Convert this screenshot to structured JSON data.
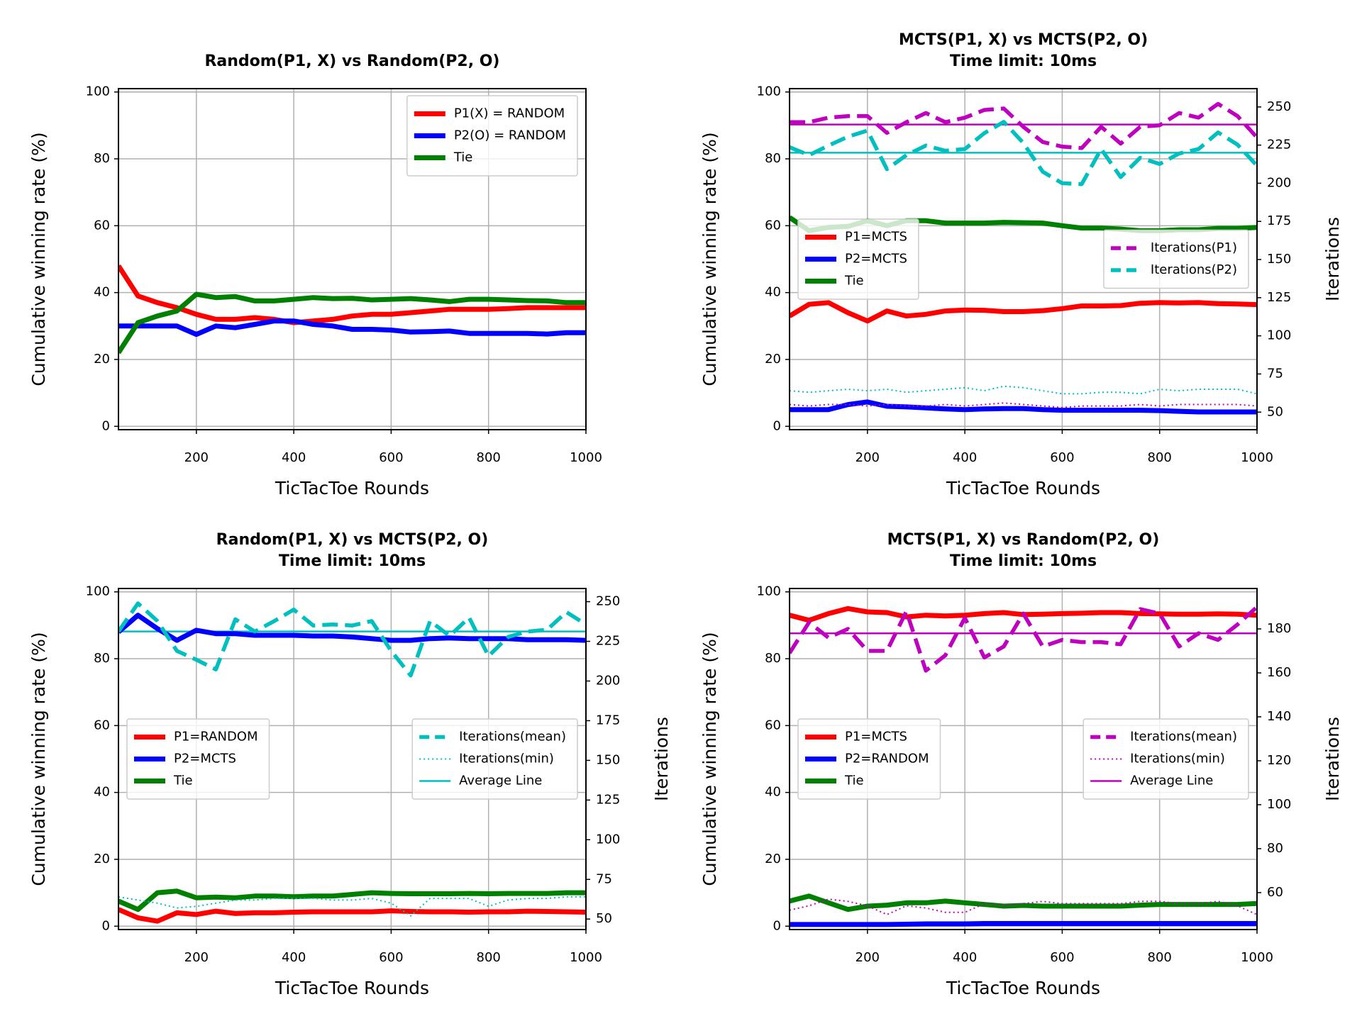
{
  "chart_data": [
    {
      "type": "line",
      "title": "Random(P1, X) vs Random(P2, O)",
      "xlabel": "TicTacToe Rounds",
      "ylabel": "Cumulative winning rate (%)",
      "x": [
        40,
        80,
        120,
        160,
        200,
        240,
        280,
        320,
        360,
        400,
        440,
        480,
        520,
        560,
        600,
        640,
        680,
        720,
        760,
        800,
        840,
        880,
        920,
        960,
        1000
      ],
      "xlim": [
        40,
        1000
      ],
      "xticks": [
        200,
        400,
        600,
        800,
        1000
      ],
      "ylim": [
        -1,
        101
      ],
      "yticks": [
        0,
        20,
        40,
        60,
        80,
        100
      ],
      "grid": true,
      "legend": "upper right",
      "series": [
        {
          "name": "P1(X) = RANDOM",
          "color": "#ff0000",
          "style": "solid",
          "values": [
            48,
            39,
            37,
            35.5,
            33.5,
            32,
            32,
            32.5,
            32,
            31,
            31.5,
            32,
            33,
            33.5,
            33.5,
            34,
            34.5,
            35,
            35,
            35,
            35.2,
            35.5,
            35.5,
            35.5,
            35.5
          ]
        },
        {
          "name": "P2(O) = RANDOM",
          "color": "#0000ff",
          "style": "solid",
          "values": [
            30,
            30,
            30,
            30,
            27.5,
            30,
            29.5,
            30.5,
            31.5,
            31.5,
            30.5,
            30,
            29,
            29,
            28.8,
            28.2,
            28.3,
            28.5,
            27.8,
            27.8,
            27.8,
            27.8,
            27.6,
            28,
            28
          ]
        },
        {
          "name": "Tie",
          "color": "#008000",
          "style": "solid",
          "values": [
            22,
            31,
            33,
            34.5,
            39.5,
            38.5,
            38.8,
            37.5,
            37.5,
            38,
            38.5,
            38.2,
            38.3,
            37.8,
            38,
            38.2,
            37.8,
            37.3,
            38,
            38,
            37.8,
            37.6,
            37.5,
            37,
            37
          ]
        }
      ]
    },
    {
      "type": "line",
      "title": "MCTS(P1, X) vs MCTS(P2, O)",
      "subtitle": "Time limit: 10ms",
      "xlabel": "TicTacToe Rounds",
      "ylabel": "Cumulative winning rate (%)",
      "y2label": "Iterations",
      "x": [
        40,
        80,
        120,
        160,
        200,
        240,
        280,
        320,
        360,
        400,
        440,
        480,
        520,
        560,
        600,
        640,
        680,
        720,
        760,
        800,
        840,
        880,
        920,
        960,
        1000
      ],
      "xlim": [
        40,
        1000
      ],
      "xticks": [
        200,
        400,
        600,
        800,
        1000
      ],
      "ylim": [
        -1,
        101
      ],
      "yticks": [
        0,
        20,
        40,
        60,
        80,
        100
      ],
      "y2lim": [
        38.5,
        262
      ],
      "y2ticks": [
        50,
        75,
        100,
        125,
        150,
        175,
        200,
        225,
        250
      ],
      "grid": true,
      "legend": "center left",
      "legend2": "center right",
      "series": [
        {
          "name": "P1=MCTS",
          "color": "#ff0000",
          "style": "solid",
          "values": [
            33,
            36.5,
            37,
            34,
            31.5,
            34.5,
            33,
            33.5,
            34.5,
            34.8,
            34.7,
            34.3,
            34.3,
            34.6,
            35.2,
            36,
            36,
            36.1,
            36.8,
            37,
            36.9,
            37,
            36.7,
            36.6,
            36.4
          ]
        },
        {
          "name": "P2=MCTS",
          "color": "#0000ff",
          "style": "solid",
          "values": [
            5,
            5,
            5,
            6.5,
            7.3,
            6,
            5.8,
            5.5,
            5.2,
            5,
            5.2,
            5.3,
            5.3,
            5,
            4.8,
            4.8,
            4.8,
            4.8,
            4.8,
            4.7,
            4.5,
            4.3,
            4.3,
            4.3,
            4.3
          ]
        },
        {
          "name": "Tie",
          "color": "#008000",
          "style": "solid",
          "values": [
            62.5,
            58.5,
            59.5,
            59.8,
            61.5,
            60,
            61.5,
            61.5,
            60.8,
            60.8,
            60.8,
            61,
            60.9,
            60.8,
            60,
            59.3,
            59.3,
            59,
            58.5,
            58.5,
            58.8,
            58.8,
            59.2,
            59.2,
            59.5
          ]
        },
        {
          "name": "Iterations(P1)",
          "color": "#bf00bf",
          "style": "dashed",
          "axis": "y2",
          "values": [
            240,
            240,
            243,
            244,
            244,
            233,
            240,
            246,
            240,
            243,
            248,
            249,
            237,
            227,
            224,
            223,
            237,
            226,
            237,
            238,
            246,
            243,
            252,
            244,
            230
          ]
        },
        {
          "name": "Iterations(P2)",
          "color": "#00bfbf",
          "style": "dashed",
          "axis": "y2",
          "values": [
            223.6,
            218.4,
            224.7,
            230.5,
            234.5,
            209.2,
            218.4,
            224.7,
            221.3,
            222.4,
            232.8,
            240.2,
            226.4,
            207.5,
            200,
            199.4,
            222.4,
            204,
            216.7,
            212.6,
            219.5,
            222.4,
            233.3,
            225.3,
            211.5
          ]
        },
        {
          "color": "#00bfbf",
          "style": "dotted",
          "axis": "y2",
          "values": [
            64,
            63,
            64,
            65,
            64,
            65,
            63,
            64,
            65,
            66,
            64,
            67,
            66,
            64,
            62,
            62,
            63,
            63,
            62,
            65,
            64,
            65,
            65,
            65,
            62
          ]
        },
        {
          "color": "#bf00bf",
          "style": "dotted",
          "axis": "y2",
          "values": [
            55,
            54,
            55,
            55,
            54,
            55,
            54,
            54,
            55,
            54,
            55,
            56,
            55,
            54,
            53,
            54,
            54,
            54,
            55,
            54,
            55,
            55,
            55,
            55,
            54
          ]
        }
      ],
      "hlines": [
        {
          "color": "#bf00bf",
          "axis": "y2",
          "value": 238.5
        },
        {
          "color": "#00bfbf",
          "axis": "y2",
          "value": 220
        }
      ]
    },
    {
      "type": "line",
      "title": "Random(P1, X) vs MCTS(P2, O)",
      "subtitle": "Time limit: 10ms",
      "xlabel": "TicTacToe Rounds",
      "ylabel": "Cumulative winning rate (%)",
      "y2label": "Iterations",
      "x": [
        40,
        80,
        120,
        160,
        200,
        240,
        280,
        320,
        360,
        400,
        440,
        480,
        520,
        560,
        600,
        640,
        680,
        720,
        760,
        800,
        840,
        880,
        920,
        960,
        1000
      ],
      "xlim": [
        40,
        1000
      ],
      "xticks": [
        200,
        400,
        600,
        800,
        1000
      ],
      "ylim": [
        -1,
        101
      ],
      "yticks": [
        0,
        20,
        40,
        60,
        80,
        100
      ],
      "y2lim": [
        43.4,
        258.3
      ],
      "y2ticks": [
        50,
        75,
        100,
        125,
        150,
        175,
        200,
        225,
        250
      ],
      "grid": true,
      "legend": "center left",
      "legend2": "center right",
      "series": [
        {
          "name": "P1=RANDOM",
          "color": "#ff0000",
          "style": "solid",
          "values": [
            5,
            2.5,
            1.5,
            4,
            3.5,
            4.5,
            3.8,
            4,
            4,
            4.2,
            4.3,
            4.3,
            4.3,
            4.3,
            4.6,
            4.4,
            4.3,
            4.3,
            4.2,
            4.3,
            4.3,
            4.5,
            4.4,
            4.3,
            4.2
          ]
        },
        {
          "name": "P2=MCTS",
          "color": "#0000ff",
          "style": "solid",
          "values": [
            88,
            93,
            89,
            85.5,
            88.5,
            87.5,
            87.5,
            87,
            87,
            87,
            86.8,
            86.8,
            86.5,
            86,
            85.5,
            85.5,
            86,
            86.2,
            86,
            86,
            86,
            85.7,
            85.7,
            85.7,
            85.5
          ]
        },
        {
          "name": "Tie",
          "color": "#008000",
          "style": "solid",
          "values": [
            7.5,
            5,
            10,
            10.5,
            8.5,
            8.7,
            8.5,
            9,
            9,
            8.8,
            9,
            9,
            9.5,
            10,
            9.8,
            9.7,
            9.7,
            9.7,
            9.8,
            9.7,
            9.8,
            9.8,
            9.8,
            10,
            10
          ]
        },
        {
          "name": "Iterations(mean)",
          "color": "#00bfbf",
          "style": "dashed",
          "axis": "y2",
          "values": [
            231.2,
            248.9,
            237.8,
            219,
            213.4,
            207.3,
            238.9,
            231.2,
            237.8,
            245,
            235,
            235.6,
            235,
            237.8,
            219,
            203.5,
            237.8,
            228.4,
            240,
            215.7,
            227.8,
            231.2,
            232.3,
            243.4,
            235.6
          ]
        },
        {
          "name": "Iterations(min)",
          "color": "#00bfbf",
          "style": "dotted",
          "axis": "y2",
          "values": [
            64,
            62,
            60,
            57,
            58,
            60,
            62,
            62,
            63,
            63,
            63,
            62,
            62,
            63,
            60,
            52,
            63,
            63,
            63,
            58,
            62,
            63,
            63,
            64,
            64
          ]
        }
      ],
      "hlines": [
        {
          "name": "Average Line",
          "color": "#00bfbf",
          "axis": "y2",
          "value": 231.2
        }
      ]
    },
    {
      "type": "line",
      "title": "MCTS(P1, X) vs Random(P2, O)",
      "subtitle": "Time limit: 10ms",
      "xlabel": "TicTacToe Rounds",
      "ylabel": "Cumulative winning rate (%)",
      "y2label": "Iterations",
      "x": [
        40,
        80,
        120,
        160,
        200,
        240,
        280,
        320,
        360,
        400,
        440,
        480,
        520,
        560,
        600,
        640,
        680,
        720,
        760,
        800,
        840,
        880,
        920,
        960,
        1000
      ],
      "xlim": [
        40,
        1000
      ],
      "xticks": [
        200,
        400,
        600,
        800,
        1000
      ],
      "ylim": [
        -1,
        101
      ],
      "yticks": [
        0,
        20,
        40,
        60,
        80,
        100
      ],
      "y2lim": [
        43.2,
        198.4
      ],
      "y2ticks": [
        60,
        80,
        100,
        120,
        140,
        160,
        180
      ],
      "grid": true,
      "legend": "center left",
      "legend2": "center right",
      "series": [
        {
          "name": "P1=MCTS",
          "color": "#ff0000",
          "style": "solid",
          "values": [
            93,
            91.5,
            93.5,
            95,
            94,
            93.8,
            92.5,
            93,
            92.8,
            93,
            93.5,
            93.8,
            93.2,
            93.3,
            93.5,
            93.6,
            93.8,
            93.8,
            93.5,
            93.4,
            93.3,
            93.3,
            93.4,
            93.3,
            93
          ]
        },
        {
          "name": "P2=RANDOM",
          "color": "#0000ff",
          "style": "solid",
          "values": [
            0.5,
            0.5,
            0.5,
            0.5,
            0.5,
            0.5,
            0.6,
            0.7,
            0.7,
            0.7,
            0.8,
            0.8,
            0.8,
            0.8,
            0.8,
            0.8,
            0.8,
            0.8,
            0.8,
            0.8,
            0.8,
            0.8,
            0.8,
            0.8,
            0.8
          ]
        },
        {
          "name": "Tie",
          "color": "#008000",
          "style": "solid",
          "values": [
            7.5,
            9,
            7,
            5,
            6,
            6.3,
            7,
            7,
            7.5,
            7,
            6.5,
            6,
            6.2,
            6,
            6,
            6,
            6,
            6,
            6.3,
            6.5,
            6.5,
            6.5,
            6.5,
            6.5,
            6.8
          ]
        },
        {
          "name": "Iterations(mean)",
          "color": "#bf00bf",
          "style": "dashed",
          "axis": "y2",
          "values": [
            169,
            183,
            176,
            180,
            170,
            170,
            188,
            161,
            168,
            185,
            167,
            172,
            187,
            172,
            175,
            174,
            174,
            173,
            189,
            187,
            172,
            178,
            175,
            182,
            190
          ]
        },
        {
          "name": "Iterations(min)",
          "color": "#bf00bf",
          "style": "dotted",
          "axis": "y2",
          "values": [
            52,
            54,
            57,
            56,
            54,
            50,
            54,
            53,
            51,
            51,
            55,
            54,
            55,
            56,
            55,
            55,
            55,
            55,
            56,
            56,
            55,
            55,
            56,
            54,
            50
          ]
        }
      ],
      "hlines": [
        {
          "name": "Average Line",
          "color": "#bf00bf",
          "axis": "y2",
          "value": 178
        }
      ]
    }
  ]
}
